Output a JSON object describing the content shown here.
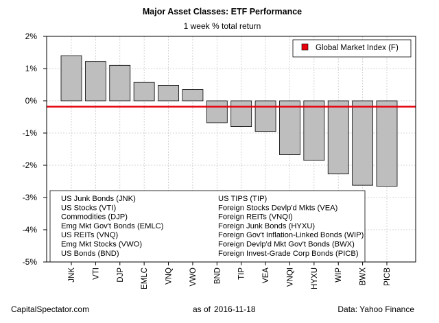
{
  "chart_data": {
    "type": "bar",
    "title": "Major Asset Classes: ETF Performance",
    "subtitle": "1 week % total return",
    "xlabel": "",
    "ylabel": "",
    "ylim": [
      -5,
      2
    ],
    "yticks": [
      -5,
      -4,
      -3,
      -2,
      -1,
      0,
      1,
      2
    ],
    "ytick_labels": [
      "-5%",
      "-4%",
      "-3%",
      "-2%",
      "-1%",
      "0%",
      "1%",
      "2%"
    ],
    "grid": true,
    "categories": [
      "JNK",
      "VTI",
      "DJP",
      "EMLC",
      "VNQ",
      "VWO",
      "BND",
      "TIP",
      "VEA",
      "VNQI",
      "HYXU",
      "WIP",
      "BWX",
      "PICB"
    ],
    "values": [
      1.4,
      1.22,
      1.1,
      0.57,
      0.48,
      0.35,
      -0.68,
      -0.8,
      -0.95,
      -1.67,
      -1.85,
      -2.27,
      -2.62,
      -2.65
    ],
    "bar_color": "#bebebe",
    "reference_line": {
      "label": "Global Market Index (F)",
      "value": -0.18,
      "color": "#e8000b"
    },
    "legend": {
      "position": "top-right",
      "entries": [
        "Global Market Index (F)"
      ]
    },
    "key": {
      "left": [
        "US Junk Bonds (JNK)",
        "US Stocks (VTI)",
        "Commodities (DJP)",
        "Emg Mkt Gov't Bonds (EMLC)",
        "US REITs (VNQ)",
        "Emg Mkt Stocks (VWO)",
        "US Bonds (BND)"
      ],
      "right": [
        "US TIPS (TIP)",
        "Foreign Stocks Devlp'd Mkts (VEA)",
        "Foreign REITs (VNQI)",
        "Foreign Junk Bonds (HYXU)",
        "Foreign Gov't Inflation-Linked Bonds (WIP)",
        "Foreign Devlp'd Mkt Gov't Bonds (BWX)",
        "Foreign Invest-Grade Corp Bonds (PICB)"
      ]
    }
  },
  "footer": {
    "source_site": "CapitalSpectator.com",
    "as_of_label": "as of",
    "date": "2016-11-18",
    "data_source": "Data: Yahoo Finance"
  }
}
